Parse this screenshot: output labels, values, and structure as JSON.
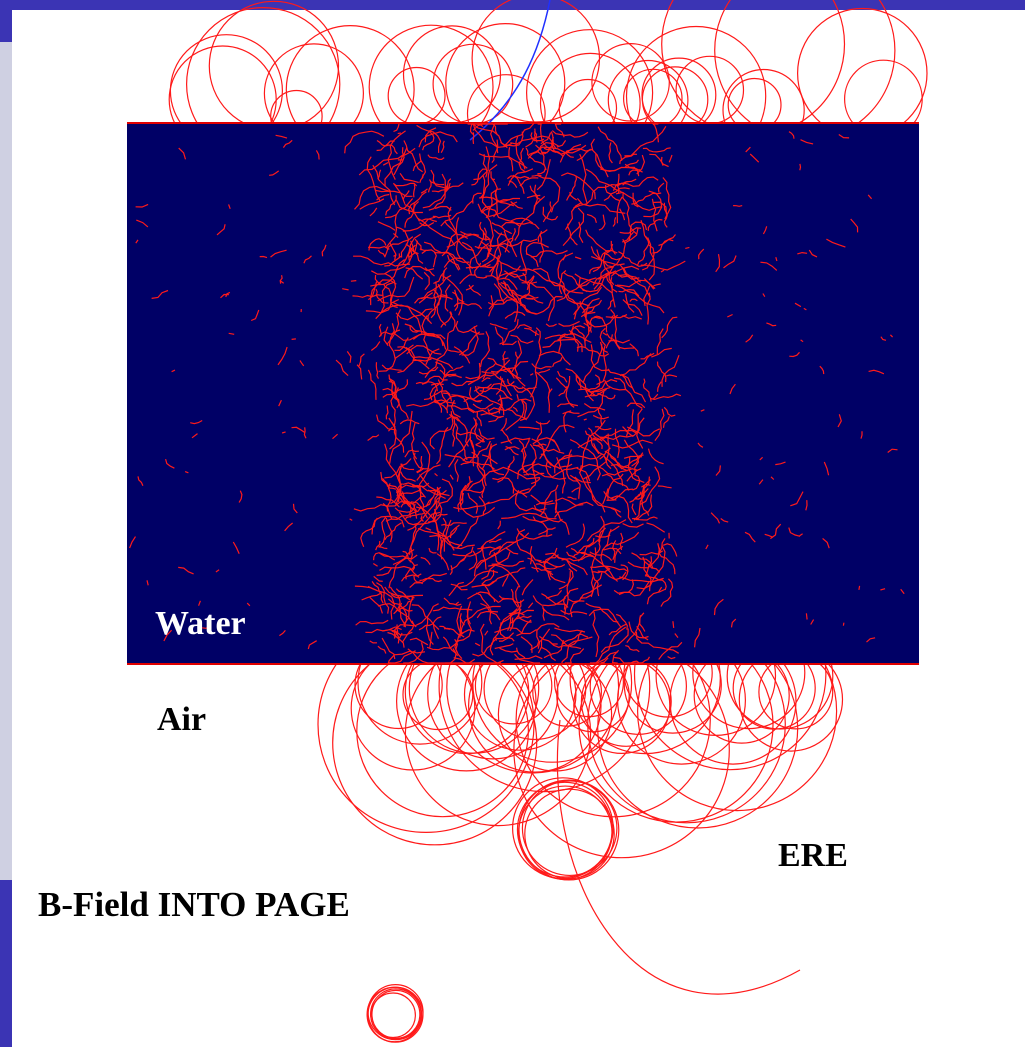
{
  "labels": {
    "water": "Water",
    "air": "Air",
    "ere": "ERE",
    "bfield": "B-Field INTO PAGE"
  }
}
